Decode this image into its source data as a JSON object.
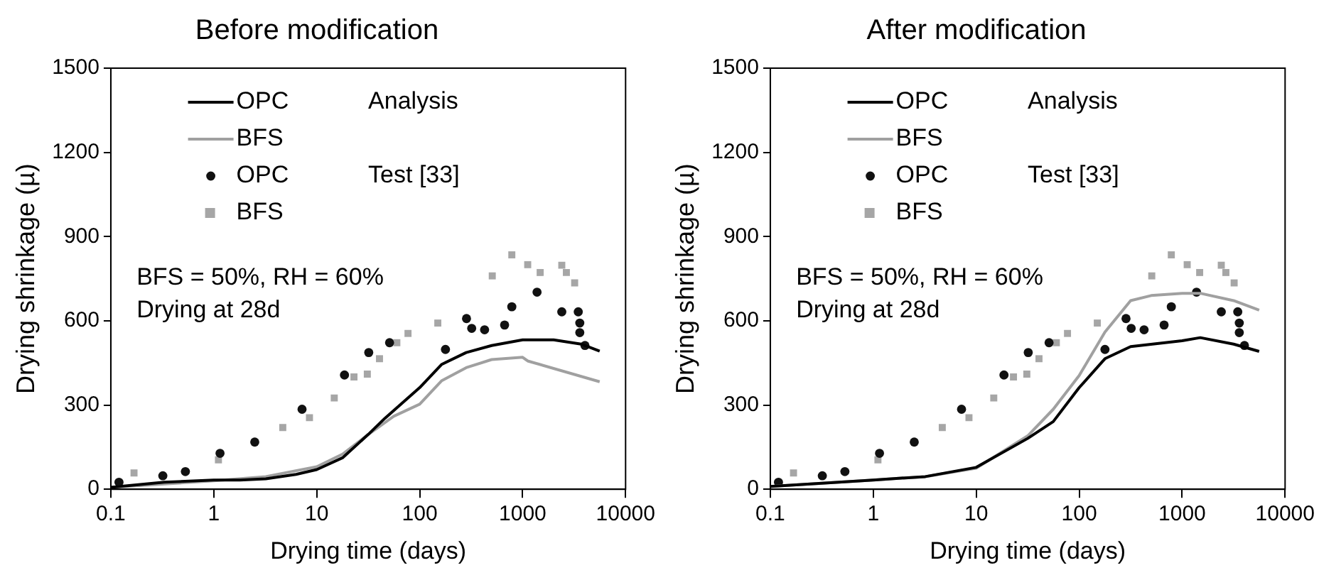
{
  "chart_data": [
    {
      "type": "line",
      "title": "Before modification",
      "xlabel": "Drying time (days)",
      "ylabel": "Drying shrinkage (µ)",
      "log": "x",
      "xlim": [
        0.1,
        10000
      ],
      "xticks": [
        0.1,
        1,
        10,
        100,
        1000,
        10000
      ],
      "ylim": [
        0,
        1500
      ],
      "yticks": [
        0,
        300,
        600,
        900,
        1200,
        1500
      ],
      "grid": false,
      "legend": "top left",
      "annotations": [
        "Analysis",
        "Test [33]",
        "BFS = 50%, RH = 60%",
        "Drying at 28d"
      ],
      "series": [
        {
          "name": "OPC",
          "color": "#000000",
          "marker": "none",
          "x": [
            0.1,
            0.33,
            1,
            1.8,
            3.2,
            6.3,
            10,
            17.8,
            31.6,
            46,
            100,
            164,
            283,
            500,
            1000,
            2000,
            3700,
            5600
          ],
          "values": [
            7,
            25,
            33,
            33,
            37,
            53,
            70,
            112,
            195,
            253,
            362,
            445,
            487,
            512,
            532,
            532,
            517,
            492
          ]
        },
        {
          "name": "BFS",
          "color": "#a0a0a0",
          "marker": "none",
          "x": [
            0.1,
            1,
            3.2,
            10,
            17.8,
            31.6,
            56,
            100,
            164,
            283,
            500,
            1000,
            1120,
            5600
          ],
          "values": [
            7,
            30,
            45,
            80,
            125,
            195,
            260,
            303,
            387,
            433,
            462,
            470,
            457,
            383
          ]
        },
        {
          "name": "OPC",
          "type": "scatter",
          "color": "#111111",
          "marker": "circle",
          "x": [
            0.12,
            0.32,
            0.53,
            1.15,
            2.5,
            7.2,
            18.6,
            32,
            51,
            178,
            285,
            320,
            427,
            668,
            785,
            1380,
            2400,
            3470,
            3590,
            3590,
            4030
          ],
          "values": [
            25,
            48,
            63,
            128,
            168,
            285,
            407,
            487,
            522,
            498,
            608,
            573,
            568,
            585,
            650,
            702,
            632,
            632,
            592,
            558,
            512
          ]
        },
        {
          "name": "BFS",
          "type": "scatter",
          "color": "#a6a6a6",
          "marker": "square",
          "x": [
            0.168,
            1.11,
            4.68,
            8.5,
            14.8,
            23,
            31,
            40.7,
            60,
            77,
            150,
            507,
            785,
            1120,
            1480,
            2400,
            2660,
            3200
          ],
          "values": [
            58,
            105,
            220,
            255,
            325,
            400,
            410,
            465,
            522,
            555,
            592,
            760,
            835,
            800,
            772,
            798,
            772,
            735
          ]
        }
      ]
    },
    {
      "type": "line",
      "title": "After modification",
      "xlabel": "Drying time (days)",
      "ylabel": "Drying shrinkage (µ)",
      "log": "x",
      "xlim": [
        0.1,
        10000
      ],
      "xticks": [
        0.1,
        1,
        10,
        100,
        1000,
        10000
      ],
      "ylim": [
        0,
        1500
      ],
      "yticks": [
        0,
        300,
        600,
        900,
        1200,
        1500
      ],
      "grid": false,
      "legend": "top left",
      "annotations": [
        "Analysis",
        "Test [33]",
        "BFS = 50%, RH = 60%",
        "Drying at 28d"
      ],
      "series": [
        {
          "name": "OPC",
          "color": "#000000",
          "marker": "none",
          "x": [
            0.1,
            1,
            3.2,
            10,
            31.6,
            56,
            100,
            178,
            316,
            1000,
            1500,
            3160,
            5600
          ],
          "values": [
            10,
            33,
            45,
            78,
            181,
            241,
            362,
            465,
            508,
            529,
            540,
            517,
            491
          ]
        },
        {
          "name": "BFS",
          "color": "#a0a0a0",
          "marker": "none",
          "x": [
            0.1,
            1,
            3.2,
            10,
            31.6,
            56,
            100,
            178,
            316,
            500,
            1000,
            1500,
            3160,
            5600
          ],
          "values": [
            10,
            33,
            45,
            75,
            190,
            285,
            405,
            560,
            672,
            690,
            698,
            698,
            672,
            638
          ]
        },
        {
          "name": "OPC",
          "type": "scatter",
          "color": "#111111",
          "marker": "circle",
          "x": [
            0.12,
            0.32,
            0.53,
            1.15,
            2.5,
            7.2,
            18.6,
            32,
            51,
            178,
            285,
            320,
            427,
            668,
            785,
            1380,
            2400,
            3470,
            3590,
            3590,
            4030
          ],
          "values": [
            25,
            48,
            63,
            128,
            168,
            285,
            407,
            487,
            522,
            498,
            608,
            573,
            568,
            585,
            650,
            702,
            632,
            632,
            592,
            558,
            512
          ]
        },
        {
          "name": "BFS",
          "type": "scatter",
          "color": "#a6a6a6",
          "marker": "square",
          "x": [
            0.168,
            1.11,
            4.68,
            8.5,
            14.8,
            23,
            31,
            40.7,
            60,
            77,
            150,
            507,
            785,
            1120,
            1480,
            2400,
            2660,
            3200
          ],
          "values": [
            58,
            105,
            220,
            255,
            325,
            400,
            410,
            465,
            522,
            555,
            592,
            760,
            835,
            800,
            772,
            798,
            772,
            735
          ]
        }
      ]
    }
  ]
}
